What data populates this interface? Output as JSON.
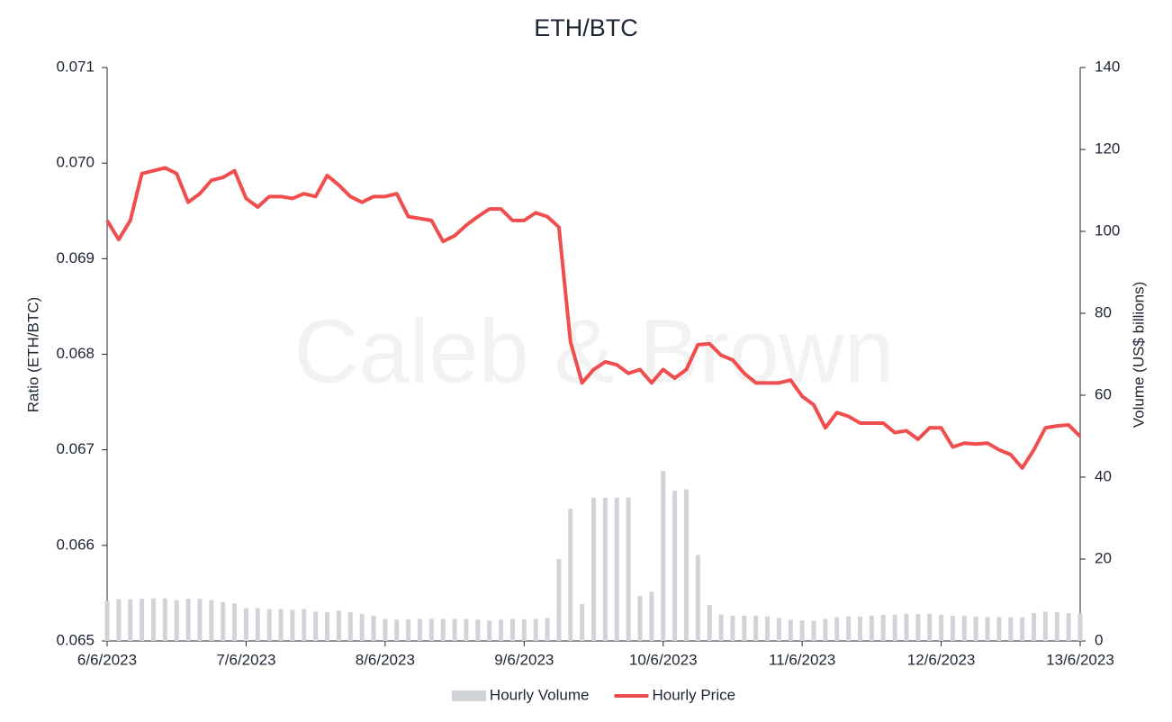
{
  "chart_data": {
    "type": "bar-line",
    "title": "ETH/BTC",
    "watermark": "Caleb & Brown",
    "y_label": "Ratio (ETH/BTC)",
    "y2_label": "Volume (US$ billions)",
    "categories": [
      "6/6/2023",
      null,
      null,
      null,
      null,
      null,
      null,
      null,
      null,
      null,
      null,
      null,
      "7/6/2023",
      null,
      null,
      null,
      null,
      null,
      null,
      null,
      null,
      null,
      null,
      null,
      "8/6/2023",
      null,
      null,
      null,
      null,
      null,
      null,
      null,
      null,
      null,
      null,
      null,
      "9/6/2023",
      null,
      null,
      null,
      null,
      null,
      null,
      null,
      null,
      null,
      null,
      null,
      "10/6/2023",
      null,
      null,
      null,
      null,
      null,
      null,
      null,
      null,
      null,
      null,
      null,
      "11/6/2023",
      null,
      null,
      null,
      null,
      null,
      null,
      null,
      null,
      null,
      null,
      null,
      "12/6/2023",
      null,
      null,
      null,
      null,
      null,
      null,
      null,
      null,
      null,
      null,
      null,
      "13/6/2023"
    ],
    "series": [
      {
        "name": "Hourly Volume",
        "type": "bar",
        "axis": "y2",
        "color": "#d0d3d8",
        "values": [
          9.8,
          10.2,
          10.2,
          10.3,
          10.4,
          10.4,
          10.0,
          10.3,
          10.3,
          10.0,
          9.5,
          9.2,
          8.0,
          8.0,
          7.8,
          7.8,
          7.6,
          7.8,
          7.2,
          7.0,
          7.4,
          7.0,
          6.6,
          6.2,
          5.4,
          5.2,
          5.3,
          5.4,
          5.4,
          5.4,
          5.4,
          5.4,
          5.2,
          5.0,
          5.2,
          5.4,
          5.3,
          5.4,
          5.6,
          20,
          32.3,
          9.0,
          35,
          35,
          35,
          35,
          11,
          12,
          41.5,
          36.7,
          37,
          21,
          8.8,
          6.5,
          6.2,
          6.2,
          6.2,
          6.0,
          5.6,
          5.2,
          5.0,
          5.0,
          5.4,
          5.8,
          6.0,
          6.0,
          6.2,
          6.4,
          6.4,
          6.6,
          6.6,
          6.6,
          6.4,
          6.2,
          6.2,
          6.0,
          5.8,
          5.8,
          5.8,
          5.8,
          6.8,
          7.2,
          7.0,
          6.8,
          6.8
        ]
      },
      {
        "name": "Hourly Price",
        "type": "line",
        "color": "#f04e4e",
        "values": [
          0.0694,
          0.0692,
          0.0694,
          0.06989,
          0.06992,
          0.06995,
          0.06989,
          0.06959,
          0.06968,
          0.06982,
          0.06985,
          0.06992,
          0.06963,
          0.06954,
          0.06965,
          0.06965,
          0.06963,
          0.06968,
          0.06965,
          0.06987,
          0.06977,
          0.06965,
          0.06959,
          0.06965,
          0.06965,
          0.06968,
          0.06944,
          0.06942,
          0.0694,
          0.06918,
          0.06924,
          0.06935,
          0.06944,
          0.06952,
          0.06952,
          0.0694,
          0.0694,
          0.06948,
          0.06944,
          0.06933,
          0.06813,
          0.0677,
          0.06784,
          0.06792,
          0.06789,
          0.0678,
          0.06784,
          0.0677,
          0.06784,
          0.06775,
          0.06784,
          0.0681,
          0.06811,
          0.06799,
          0.06794,
          0.0678,
          0.0677,
          0.0677,
          0.0677,
          0.06773,
          0.06756,
          0.06747,
          0.06723,
          0.06739,
          0.06735,
          0.06728,
          0.06728,
          0.06728,
          0.06718,
          0.0672,
          0.06711,
          0.06723,
          0.06723,
          0.06703,
          0.06707,
          0.06706,
          0.06707,
          0.067,
          0.06695,
          0.06681,
          0.067,
          0.06723,
          0.06725,
          0.06726,
          0.06714
        ]
      }
    ],
    "ylim": [
      0.065,
      0.071
    ],
    "yticks": [
      {
        "value": 0.065,
        "label": "0.065"
      },
      0.066,
      0.067,
      0.068,
      0.069,
      {
        "value": 0.07,
        "label": "0.070"
      },
      0.071
    ],
    "y2lim": [
      0,
      140
    ],
    "y2ticks": [
      0,
      20,
      40,
      60,
      80,
      100,
      120,
      140
    ],
    "legend": "bottom"
  }
}
